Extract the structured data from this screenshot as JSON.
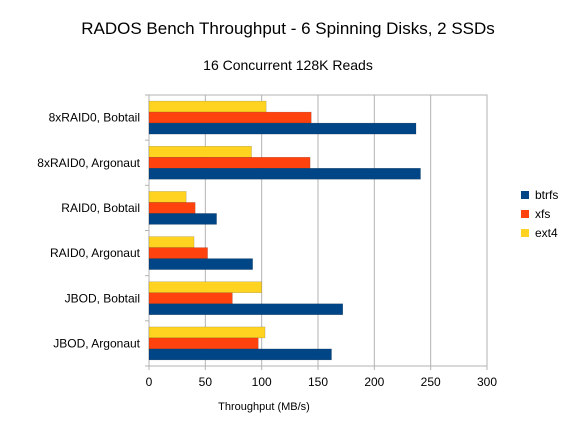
{
  "chart_data": {
    "type": "bar",
    "orientation": "horizontal",
    "title": "RADOS Bench Throughput - 6 Spinning Disks, 2 SSDs",
    "subtitle": "16 Concurrent 128K Reads",
    "xlabel": "Throughput (MB/s)",
    "ylabel": "",
    "xlim": [
      0,
      300
    ],
    "xticks": [
      "0",
      "50",
      "100",
      "150",
      "200",
      "250",
      "300"
    ],
    "grid": true,
    "legend_position": "right",
    "categories": [
      "8xRAID0, Bobtail",
      "8xRAID0, Argonaut",
      "RAID0, Bobtail",
      "RAID0, Argonaut",
      "JBOD, Bobtail",
      "JBOD, Argonaut"
    ],
    "series": [
      {
        "name": "btrfs",
        "color": "#004586",
        "values": [
          237,
          241,
          60,
          92,
          172,
          162
        ]
      },
      {
        "name": "xfs",
        "color": "#ff420e",
        "values": [
          144,
          143,
          41,
          52,
          74,
          97
        ]
      },
      {
        "name": "ext4",
        "color": "#ffd320",
        "values": [
          104,
          91,
          33,
          40,
          100,
          103
        ]
      }
    ]
  }
}
